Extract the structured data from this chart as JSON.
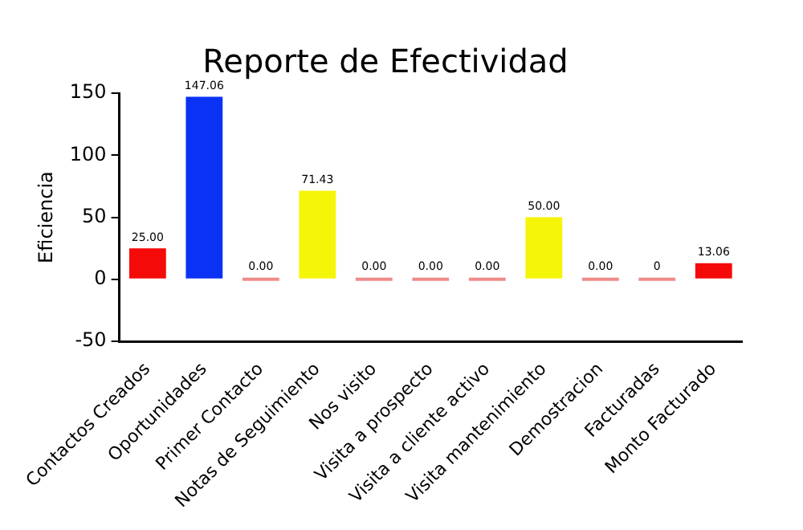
{
  "chart_data": {
    "type": "bar",
    "title": "Reporte de Efectividad",
    "ylabel": "Eficiencia",
    "categories": [
      "Contactos Creados",
      "Oportunidades",
      "Primer Contacto",
      "Notas de Seguimiento",
      "Nos visito",
      "Visita a prospecto",
      "Visita a cliente activo",
      "Visita mantenimiento",
      "Demostracion",
      "Facturadas",
      "Monto Facturado"
    ],
    "values": [
      25,
      147.06,
      0,
      71.43,
      0,
      0,
      0,
      50,
      0,
      0,
      13.06
    ],
    "value_labels": [
      "25.00",
      "147.06",
      "0.00",
      "71.43",
      "0.00",
      "0.00",
      "0.00",
      "50.00",
      "0.00",
      "0",
      "13.06"
    ],
    "colors": [
      "#f50a0a",
      "#0a32f5",
      "#f08a8a",
      "#f5f50a",
      "#f08a8a",
      "#f08a8a",
      "#f08a8a",
      "#f5f50a",
      "#f08a8a",
      "#f08a8a",
      "#f50a0a"
    ],
    "ylim": [
      -50,
      150
    ],
    "yticks": [
      -50,
      0,
      50,
      100,
      150
    ],
    "grid": false,
    "legend": false
  }
}
